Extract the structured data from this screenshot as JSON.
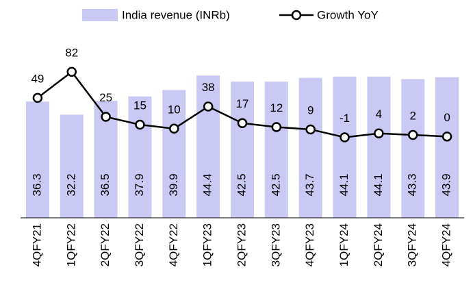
{
  "chart_data": {
    "type": "bar_line",
    "categories": [
      "4QFY21",
      "1QFY22",
      "2QFY22",
      "3QFY22",
      "4QFY22",
      "1QFY23",
      "2QFY23",
      "3QFY23",
      "4QFY23",
      "1QFY24",
      "2QFY24",
      "3QFY24",
      "4QFY24"
    ],
    "series": [
      {
        "name": "India revenue (INRb)",
        "type": "bar",
        "color": "#c9c9f3",
        "label_color": "#1a1aa6",
        "values": [
          36.3,
          32.2,
          36.5,
          37.9,
          39.9,
          44.4,
          42.5,
          42.5,
          43.7,
          44.1,
          44.1,
          43.3,
          43.9
        ]
      },
      {
        "name": "Growth YoY",
        "type": "line",
        "color": "#000000",
        "axis": "y2",
        "values": [
          49,
          82,
          25,
          15,
          10,
          38,
          17,
          12,
          9,
          -1,
          4,
          2,
          0
        ]
      }
    ],
    "ylim": [
      0,
      68
    ],
    "y2lim": [
      -103,
      173
    ]
  }
}
